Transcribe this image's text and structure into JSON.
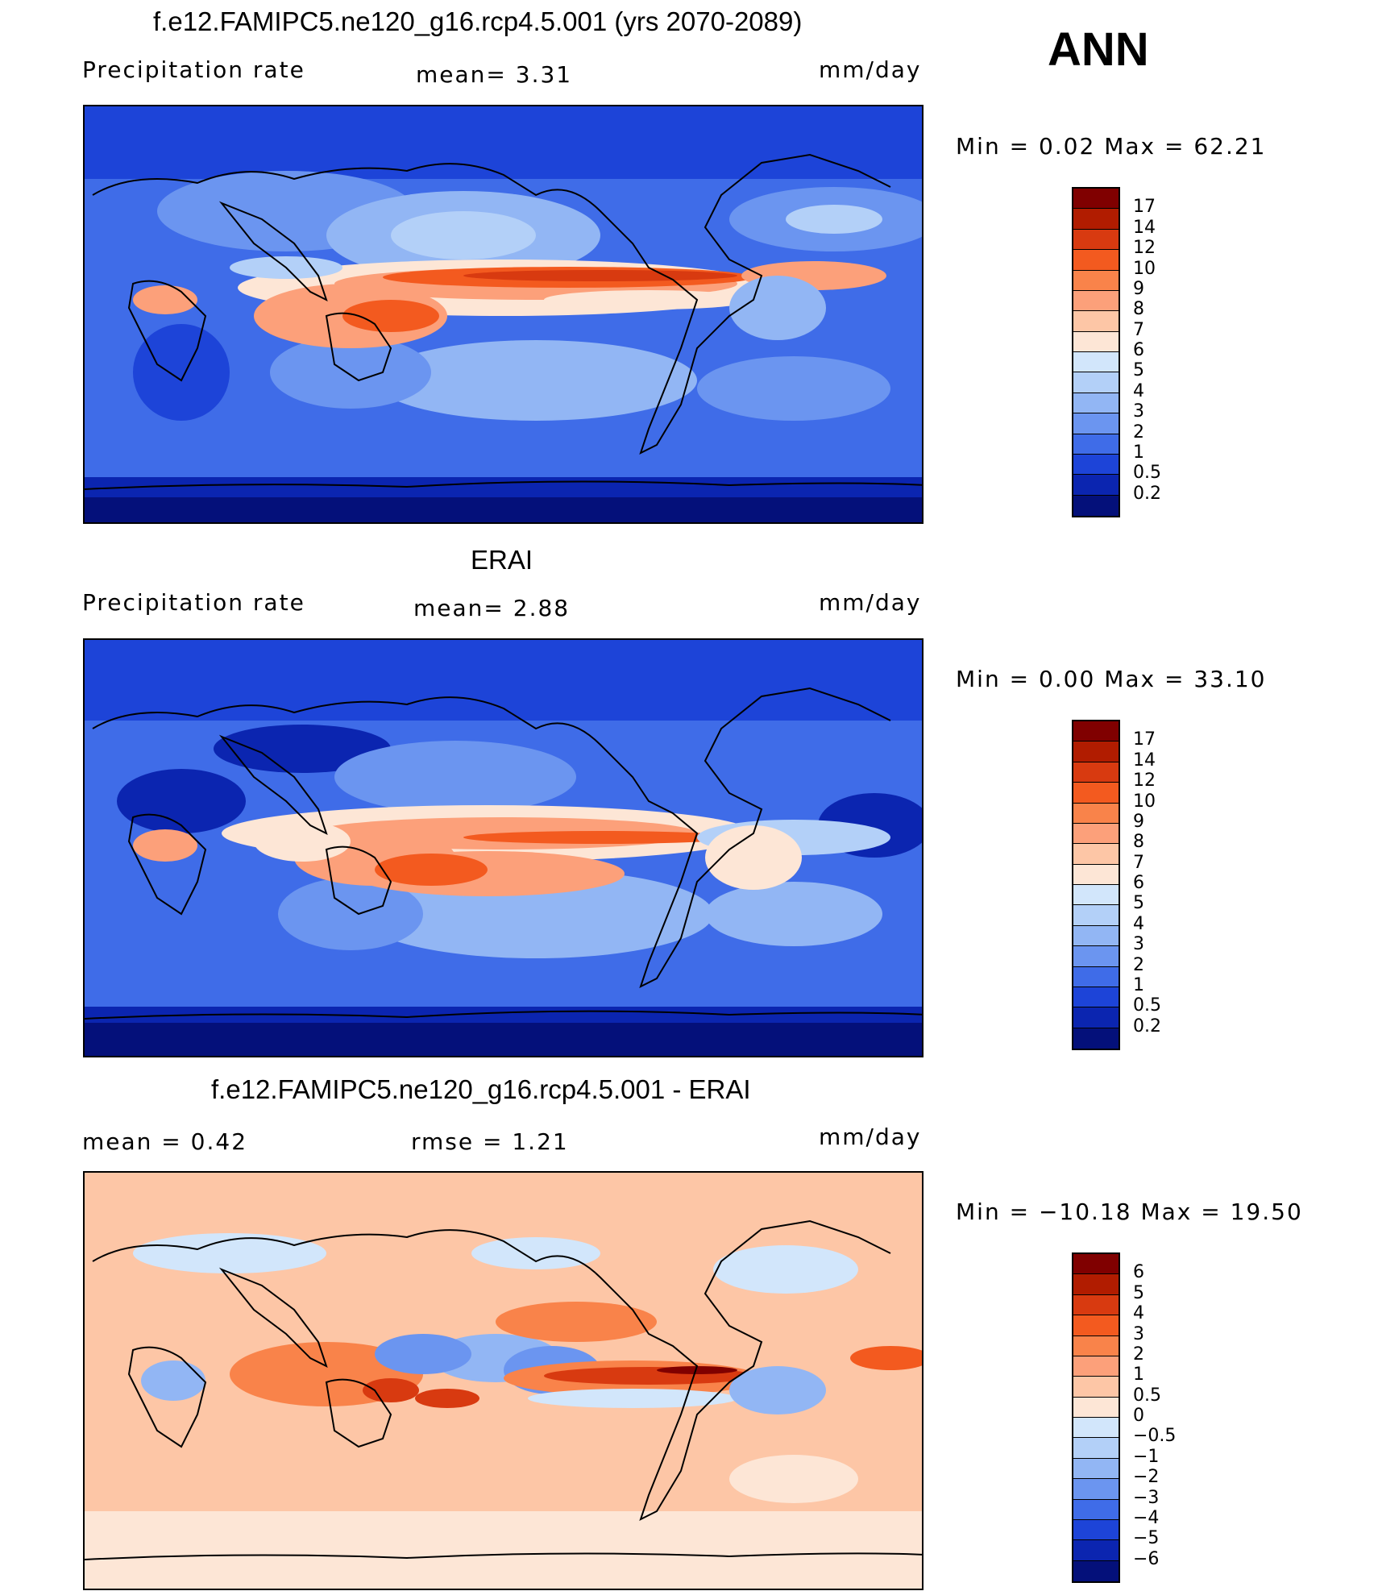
{
  "season": "ANN",
  "panels": [
    {
      "title": "f.e12.FAMIPC5.ne120_g16.rcp4.5.001 (yrs 2070-2089)",
      "left_label": "Precipitation  rate",
      "mid_label": "mean=    3.31",
      "units": "mm/day",
      "minmax": "Min  =     0.02  Max  =    62.21",
      "scale": "absolute",
      "levels": [
        "17",
        "14",
        "12",
        "10",
        "9",
        "8",
        "7",
        "6",
        "5",
        "4",
        "3",
        "2",
        "1",
        "0.5",
        "0.2"
      ],
      "colors": [
        "#800000",
        "#b11c00",
        "#d83a10",
        "#f35a1f",
        "#f9834a",
        "#fca07a",
        "#fdc6a6",
        "#fde6d6",
        "#d2e6fb",
        "#b3d0f8",
        "#92b6f4",
        "#6b95f0",
        "#3f6ce8",
        "#1d44d8",
        "#0b25b0",
        "#04107a"
      ]
    },
    {
      "title": "ERAI",
      "left_label": "Precipitation  rate",
      "mid_label": "mean=    2.88",
      "units": "mm/day",
      "minmax": "Min  =     0.00  Max  =    33.10",
      "scale": "absolute",
      "levels": [
        "17",
        "14",
        "12",
        "10",
        "9",
        "8",
        "7",
        "6",
        "5",
        "4",
        "3",
        "2",
        "1",
        "0.5",
        "0.2"
      ],
      "colors": [
        "#800000",
        "#b11c00",
        "#d83a10",
        "#f35a1f",
        "#f9834a",
        "#fca07a",
        "#fdc6a6",
        "#fde6d6",
        "#d2e6fb",
        "#b3d0f8",
        "#92b6f4",
        "#6b95f0",
        "#3f6ce8",
        "#1d44d8",
        "#0b25b0",
        "#04107a"
      ]
    },
    {
      "title": "f.e12.FAMIPC5.ne120_g16.rcp4.5.001 - ERAI",
      "left_label": "mean  =     0.42",
      "mid_label": "rmse  =     1.21",
      "units": "mm/day",
      "minmax": "Min  = −10.18  Max  =    19.50",
      "scale": "difference",
      "levels": [
        "6",
        "5",
        "4",
        "3",
        "2",
        "1",
        "0.5",
        "0",
        "−0.5",
        "−1",
        "−2",
        "−3",
        "−4",
        "−5",
        "−6"
      ],
      "colors": [
        "#800000",
        "#b11c00",
        "#d83a10",
        "#f35a1f",
        "#f9834a",
        "#fca07a",
        "#fdc6a6",
        "#fde6d6",
        "#d2e6fb",
        "#b3d0f8",
        "#92b6f4",
        "#6b95f0",
        "#3f6ce8",
        "#1d44d8",
        "#0b25b0",
        "#04107a"
      ]
    }
  ]
}
